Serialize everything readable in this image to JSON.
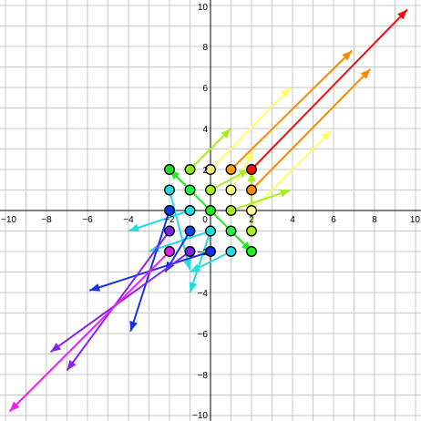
{
  "chart_data": {
    "type": "scatter",
    "xlim": [
      -10,
      10
    ],
    "ylim": [
      -10,
      10
    ],
    "grid": true,
    "xticks": [
      "−10",
      "−8",
      "−6",
      "−4",
      "−2",
      "0",
      "2",
      "4",
      "6",
      "8",
      "10"
    ],
    "yticks": [
      "−10",
      "−8",
      "−6",
      "−4",
      "−2",
      "2",
      "4",
      "6",
      "8",
      "10"
    ],
    "points": [
      {
        "x": -2,
        "y": 2,
        "color": "#22dd22"
      },
      {
        "x": -1,
        "y": 2,
        "color": "#88ee22"
      },
      {
        "x": 0,
        "y": 2,
        "color": "#eeee88"
      },
      {
        "x": 1,
        "y": 2,
        "color": "#ff9900"
      },
      {
        "x": 2,
        "y": 2,
        "color": "#ee1111"
      },
      {
        "x": -2,
        "y": 1,
        "color": "#22dddd"
      },
      {
        "x": -1,
        "y": 1,
        "color": "#22ee44"
      },
      {
        "x": 0,
        "y": 1,
        "color": "#aaee22"
      },
      {
        "x": 1,
        "y": 1,
        "color": "#ffff77"
      },
      {
        "x": 2,
        "y": 1,
        "color": "#ff8811"
      },
      {
        "x": -2,
        "y": 0,
        "color": "#1133ee"
      },
      {
        "x": -1,
        "y": 0,
        "color": "#22dddd"
      },
      {
        "x": 0,
        "y": 0,
        "color": "#22ee22"
      },
      {
        "x": 1,
        "y": 0,
        "color": "#aaee22"
      },
      {
        "x": 2,
        "y": 0,
        "color": "#ffff99"
      },
      {
        "x": -2,
        "y": -1,
        "color": "#7722dd"
      },
      {
        "x": -1,
        "y": -1,
        "color": "#1144ee"
      },
      {
        "x": 0,
        "y": -1,
        "color": "#22dddd"
      },
      {
        "x": 1,
        "y": -1,
        "color": "#22ee44"
      },
      {
        "x": 2,
        "y": -1,
        "color": "#aaee22"
      },
      {
        "x": -2,
        "y": -2,
        "color": "#dd22dd"
      },
      {
        "x": -1,
        "y": -2,
        "color": "#7722dd"
      },
      {
        "x": 0,
        "y": -2,
        "color": "#1133ee"
      },
      {
        "x": 1,
        "y": -2,
        "color": "#22dddd"
      },
      {
        "x": 2,
        "y": -2,
        "color": "#22ee22"
      }
    ],
    "vectors": [
      {
        "x1": 2,
        "y1": 2,
        "x2": 9.6,
        "y2": 9.8,
        "color": "#ee1111"
      },
      {
        "x1": 1,
        "y1": 2,
        "x2": 6.9,
        "y2": 7.8,
        "color": "#ff8800"
      },
      {
        "x1": 2,
        "y1": 1,
        "x2": 7.8,
        "y2": 6.9,
        "color": "#ff8800"
      },
      {
        "x1": 0,
        "y1": 2,
        "x2": 3.9,
        "y2": 6.0,
        "color": "#ffff66"
      },
      {
        "x1": 2,
        "y1": 0,
        "x2": 5.9,
        "y2": 3.9,
        "color": "#ffff66"
      },
      {
        "x1": 1,
        "y1": 1,
        "x2": 2.1,
        "y2": 2.9,
        "color": "#ffff66"
      },
      {
        "x1": -1,
        "y1": 2,
        "x2": 1.0,
        "y2": 4.0,
        "color": "#aaee22"
      },
      {
        "x1": 1,
        "y1": 0,
        "x2": 3.9,
        "y2": 1.0,
        "color": "#aaee22"
      },
      {
        "x1": 0,
        "y1": 1,
        "x2": 1.9,
        "y2": 2.0,
        "color": "#aaee22"
      },
      {
        "x1": 2,
        "y1": -1,
        "x2": 2.0,
        "y2": 1.9,
        "color": "#aaee22"
      },
      {
        "x1": -1,
        "y1": 1,
        "x2": -2.0,
        "y2": 2.0,
        "color": "#22ee22"
      },
      {
        "x1": 0,
        "y1": 0,
        "x2": -2.0,
        "y2": 2.0,
        "color": "#22ee22"
      },
      {
        "x1": 0,
        "y1": 0,
        "x2": 2.0,
        "y2": -2.0,
        "color": "#22ee22"
      },
      {
        "x1": 1,
        "y1": -1,
        "x2": 2.0,
        "y2": -2.0,
        "color": "#22ee22"
      },
      {
        "x1": -1,
        "y1": 0,
        "x2": -4.0,
        "y2": -1.0,
        "color": "#22dddd"
      },
      {
        "x1": -2,
        "y1": 1,
        "x2": -1.0,
        "y2": -2.9,
        "color": "#22dddd"
      },
      {
        "x1": 0,
        "y1": -1,
        "x2": -3.0,
        "y2": -2.0,
        "color": "#22dddd"
      },
      {
        "x1": 1,
        "y1": -2,
        "x2": -1.0,
        "y2": -3.0,
        "color": "#22dddd"
      },
      {
        "x1": 0,
        "y1": -1,
        "x2": -1.0,
        "y2": -4.0,
        "color": "#22dddd"
      },
      {
        "x1": -2,
        "y1": 0,
        "x2": -3.9,
        "y2": -5.9,
        "color": "#1133ee"
      },
      {
        "x1": 0,
        "y1": -2,
        "x2": -5.9,
        "y2": -3.9,
        "color": "#1133ee"
      },
      {
        "x1": -1,
        "y1": -1,
        "x2": -2.2,
        "y2": -3.0,
        "color": "#1133ee"
      },
      {
        "x1": -2,
        "y1": -1,
        "x2": -7.0,
        "y2": -7.8,
        "color": "#8822ee"
      },
      {
        "x1": -1,
        "y1": -2,
        "x2": -7.8,
        "y2": -6.9,
        "color": "#8822ee"
      },
      {
        "x1": -2,
        "y1": -2,
        "x2": -9.8,
        "y2": -9.8,
        "color": "#ee22ee"
      }
    ]
  }
}
